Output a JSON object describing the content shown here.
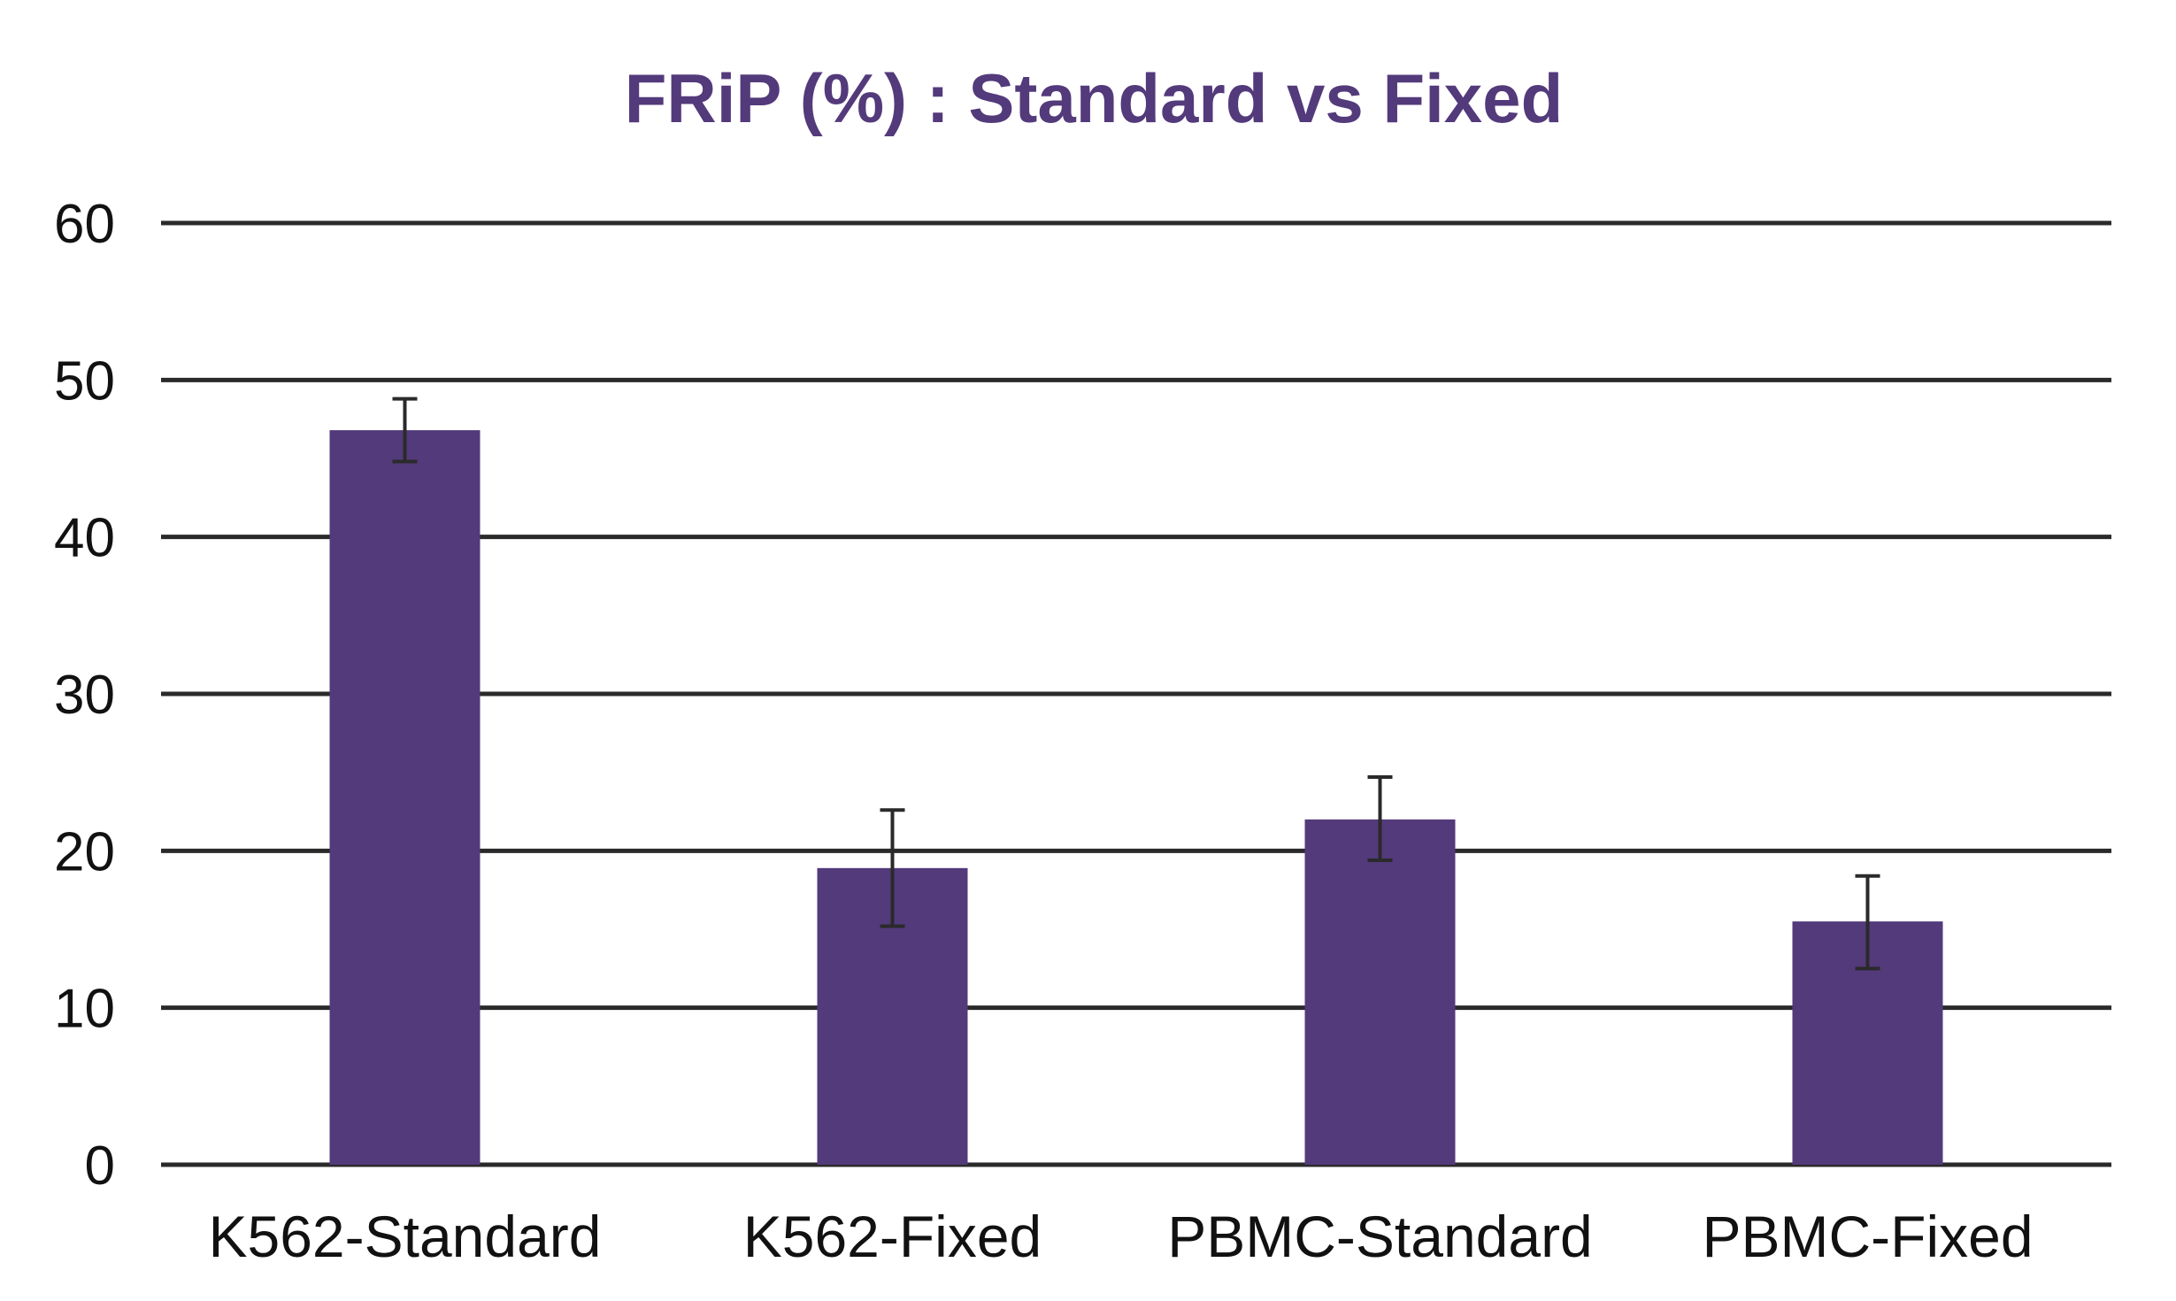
{
  "chart_data": {
    "type": "bar",
    "title": "FRiP (%) : Standard vs Fixed",
    "xlabel": "",
    "ylabel": "",
    "categories": [
      "K562-Standard",
      "K562-Fixed",
      "PBMC-Standard",
      "PBMC-Fixed"
    ],
    "series": [
      {
        "values": [
          46.8,
          18.9,
          22.0,
          15.5
        ],
        "error_low": [
          44.8,
          15.2,
          19.4,
          12.5
        ],
        "error_high": [
          48.8,
          22.6,
          24.7,
          18.4
        ]
      }
    ],
    "ylim": [
      0,
      60
    ],
    "yticks": [
      0,
      10,
      20,
      30,
      40,
      50,
      60
    ],
    "grid": true,
    "legend": "none",
    "colors": {
      "bar": "#533a7b",
      "title": "#533a7b",
      "grid": "#2a2a2a",
      "error": "#2a2a2a"
    }
  }
}
